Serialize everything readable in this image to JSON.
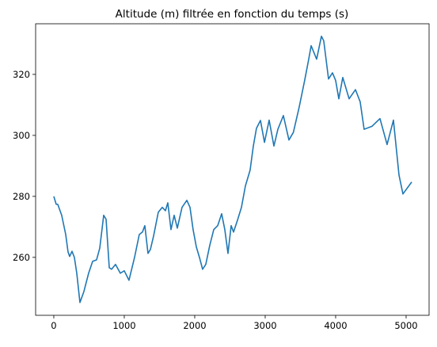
{
  "chart_data": {
    "type": "line",
    "title": "Altitude (m) filtrée en fonction du temps (s)",
    "x": [
      0,
      34,
      56,
      112,
      169,
      202,
      225,
      258,
      292,
      326,
      371,
      427,
      494,
      551,
      607,
      652,
      708,
      742,
      787,
      820,
      876,
      944,
      1000,
      1067,
      1146,
      1213,
      1258,
      1292,
      1337,
      1371,
      1416,
      1483,
      1539,
      1584,
      1618,
      1663,
      1708,
      1753,
      1820,
      1888,
      1933,
      1977,
      2023,
      2067,
      2112,
      2157,
      2213,
      2270,
      2326,
      2382,
      2427,
      2472,
      2517,
      2551,
      2607,
      2663,
      2719,
      2786,
      2831,
      2876,
      2933,
      2990,
      3056,
      3124,
      3180,
      3258,
      3337,
      3400,
      3480,
      3560,
      3618,
      3652,
      3730,
      3798,
      3831,
      3899,
      3955,
      4000,
      4045,
      4101,
      4191,
      4281,
      4348,
      4404,
      4517,
      4629,
      4730,
      4820,
      4899,
      4955,
      5079
    ],
    "series": [
      {
        "name": "altitude",
        "color": "#1f77b4",
        "values": [
          280,
          277.4,
          277.4,
          273.8,
          267.5,
          261.8,
          260.3,
          262,
          260,
          254.8,
          245.2,
          248.8,
          254.8,
          258.7,
          259.2,
          263,
          273.8,
          272.5,
          256.6,
          256.1,
          257.7,
          254.8,
          255.6,
          252.5,
          260,
          267.5,
          268.3,
          270.4,
          261.3,
          262.6,
          267,
          274.8,
          276.4,
          275.3,
          277.9,
          269.1,
          273.8,
          269.6,
          276.4,
          278.7,
          276.4,
          269.1,
          263.4,
          260,
          256.1,
          257.7,
          263.9,
          269.1,
          270.4,
          274.3,
          269.1,
          261.3,
          270.4,
          268.3,
          272.2,
          276.4,
          283.4,
          288.6,
          296.4,
          302.3,
          304.9,
          297.7,
          305,
          296.5,
          302,
          306.5,
          298.5,
          301,
          309,
          318,
          325,
          329.4,
          325,
          332.5,
          331,
          318.5,
          320.5,
          318,
          312,
          319,
          312,
          315,
          311,
          302,
          303,
          305.5,
          297,
          305,
          287,
          280.8,
          284.7
        ]
      }
    ],
    "xlim": [
      -258,
      5326
    ],
    "xticks": [
      0,
      1000,
      2000,
      3000,
      4000,
      5000
    ],
    "ylim": [
      241,
      336.6
    ],
    "yticks": [
      260,
      280,
      300,
      320
    ]
  }
}
